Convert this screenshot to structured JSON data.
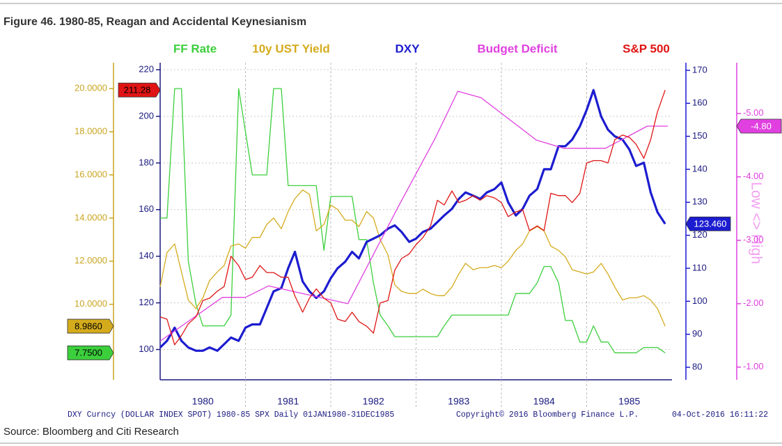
{
  "chart_data": {
    "type": "line",
    "title": "Figure 46. 1980-85, Reagan and Accidental Keynesianism",
    "source": "Source: Bloomberg and Citi Research",
    "notes": [
      "DXY Curncy (DOLLAR INDEX SPOT) 1980-85 SPX  Daily 01JAN1980-31DEC1985",
      "Copyright© 2016 Bloomberg Finance L.P.",
      "04-Oct-2016 16:11:22"
    ],
    "y4label": "Low <> High",
    "grid": true,
    "xlim": [
      1980,
      1986
    ],
    "xticks": [
      1981,
      1982,
      1983,
      1984,
      1985
    ],
    "x_labels": [
      {
        "value": 1980.5,
        "label": "1980"
      },
      {
        "value": 1981.5,
        "label": "1981"
      },
      {
        "value": 1982.5,
        "label": "1982"
      },
      {
        "value": 1983.5,
        "label": "1983"
      },
      {
        "value": 1984.5,
        "label": "1984"
      },
      {
        "value": 1985.5,
        "label": "1985"
      }
    ],
    "ylim": [
      6.5,
      21.2
    ],
    "yticks": [
      {
        "value": 10,
        "label": "10.0000"
      },
      {
        "value": 12,
        "label": "12.0000"
      },
      {
        "value": 14,
        "label": "14.0000"
      },
      {
        "value": 16,
        "label": "16.0000"
      },
      {
        "value": 18,
        "label": "18.0000"
      },
      {
        "value": 20,
        "label": "20.0000"
      }
    ],
    "y2lim": [
      87,
      223
    ],
    "y2ticks": [
      100,
      120,
      140,
      160,
      180,
      200,
      220
    ],
    "y3lim": [
      76.2,
      172.3
    ],
    "y3ticks": [
      80,
      90,
      100,
      110,
      120,
      130,
      140,
      150,
      160,
      170
    ],
    "y4lim": [
      -0.8,
      -5.8
    ],
    "y4ticks": [
      {
        "value": -1,
        "label": "-1.00"
      },
      {
        "value": -2,
        "label": "-2.00"
      },
      {
        "value": -3,
        "label": "-3.00"
      },
      {
        "value": -4,
        "label": "-4.00"
      },
      {
        "value": -5,
        "label": "-5.00"
      }
    ],
    "x": [
      1980.0,
      1980.08,
      1980.17,
      1980.25,
      1980.33,
      1980.42,
      1980.5,
      1980.58,
      1980.67,
      1980.75,
      1980.83,
      1980.92,
      1981.0,
      1981.08,
      1981.17,
      1981.25,
      1981.33,
      1981.42,
      1981.5,
      1981.58,
      1981.67,
      1981.75,
      1981.83,
      1981.92,
      1982.0,
      1982.08,
      1982.17,
      1982.25,
      1982.33,
      1982.42,
      1982.5,
      1982.58,
      1982.67,
      1982.75,
      1982.83,
      1982.92,
      1983.0,
      1983.08,
      1983.17,
      1983.25,
      1983.33,
      1983.42,
      1983.5,
      1983.58,
      1983.67,
      1983.75,
      1983.83,
      1983.92,
      1984.0,
      1984.08,
      1984.17,
      1984.25,
      1984.33,
      1984.42,
      1984.5,
      1984.58,
      1984.67,
      1984.75,
      1984.83,
      1984.92,
      1985.0,
      1985.08,
      1985.17,
      1985.25,
      1985.33,
      1985.42,
      1985.5,
      1985.58,
      1985.67,
      1985.75,
      1985.83,
      1985.92
    ],
    "series": [
      {
        "name": "FF Rate",
        "color": "#3ccf3c",
        "axis": "y",
        "values": [
          14,
          14,
          20,
          20,
          12,
          10,
          9,
          9,
          9,
          9,
          9.5,
          20,
          18,
          16,
          16,
          16,
          20,
          20,
          15.5,
          15.5,
          15.5,
          15.5,
          15.5,
          12.5,
          15,
          15,
          15,
          15,
          13,
          13,
          11,
          9.5,
          9,
          8.5,
          8.5,
          8.5,
          8.5,
          8.5,
          8.5,
          8.5,
          9,
          9.5,
          9.5,
          9.5,
          9.5,
          9.5,
          9.5,
          9.5,
          9.5,
          9.5,
          10.5,
          10.5,
          10.5,
          11,
          11.75,
          11.75,
          11,
          9.25,
          9.25,
          8.25,
          8.25,
          9,
          8.25,
          8.25,
          7.75,
          7.75,
          7.75,
          7.75,
          8,
          8,
          8,
          7.75
        ],
        "end_tag": {
          "value": 7.75,
          "label": "7.7500"
        }
      },
      {
        "name": "10y UST Yield",
        "color": "#d4ab1c",
        "axis": "y",
        "values": [
          10.8,
          12.4,
          12.8,
          11.5,
          10.2,
          9.8,
          10.3,
          11.1,
          11.5,
          11.8,
          12.7,
          12.8,
          12.6,
          13.1,
          13.1,
          13.7,
          14.0,
          13.5,
          14.3,
          14.9,
          15.3,
          15.1,
          13.4,
          13.7,
          14.6,
          14.4,
          13.9,
          13.9,
          13.6,
          14.3,
          14.0,
          13.0,
          12.3,
          10.9,
          10.6,
          10.5,
          10.5,
          10.7,
          10.5,
          10.4,
          10.4,
          10.8,
          11.4,
          11.9,
          11.6,
          11.7,
          11.7,
          11.8,
          11.7,
          12.0,
          12.5,
          12.8,
          13.4,
          13.6,
          13.4,
          12.7,
          12.5,
          12.2,
          11.6,
          11.5,
          11.4,
          11.5,
          11.9,
          11.4,
          10.8,
          10.2,
          10.3,
          10.3,
          10.4,
          10.2,
          9.8,
          8.986
        ],
        "end_tag": {
          "value": 8.986,
          "label": "8.9860"
        }
      },
      {
        "name": "DXY",
        "color": "#1c1cd0",
        "axis": "y3",
        "values": [
          86,
          88,
          92,
          88,
          86,
          85,
          85,
          86,
          85,
          87,
          89,
          88,
          92,
          93,
          93,
          98,
          103,
          104,
          110,
          115,
          106,
          103,
          101,
          103,
          107,
          110,
          112,
          115,
          113,
          118,
          119,
          120,
          122,
          123,
          121,
          118,
          119,
          121,
          122,
          124,
          126,
          128,
          131,
          133,
          132,
          131,
          133,
          134,
          136,
          130,
          126,
          128,
          132,
          134,
          140,
          140,
          147,
          147,
          149,
          153,
          158,
          164,
          156,
          152,
          150,
          149,
          146,
          141,
          142,
          133,
          127,
          123.46
        ],
        "end_tag": {
          "value": 123.46,
          "label": "123.460"
        }
      },
      {
        "name": "Budget Deficit",
        "color": "#e040e0",
        "axis": "y4",
        "x": [
          1980.0,
          1980.73,
          1981.0,
          1981.27,
          1982.2,
          1982.78,
          1983.22,
          1983.49,
          1983.76,
          1984.41,
          1984.73,
          1985.22,
          1985.71,
          1985.95
        ],
        "values": [
          -1.41,
          -2.1,
          -2.1,
          -2.28,
          -2.0,
          -3.5,
          -4.6,
          -5.35,
          -5.25,
          -4.58,
          -4.45,
          -4.45,
          -4.8,
          -4.8
        ],
        "end_tag": {
          "value": -4.8,
          "label": "-4.80"
        }
      },
      {
        "name": "S&P 500",
        "color": "#e01414",
        "axis": "y2",
        "values": [
          114,
          113,
          102,
          106,
          111,
          114,
          121,
          122,
          125,
          127,
          140,
          136,
          130,
          131,
          136,
          133,
          133,
          131,
          131,
          123,
          116,
          122,
          126,
          122,
          120,
          113,
          112,
          116,
          112,
          110,
          107,
          120,
          121,
          134,
          139,
          141,
          145,
          148,
          153,
          164,
          162,
          168,
          163,
          164,
          166,
          164,
          166,
          165,
          163,
          157,
          159,
          160,
          151,
          153,
          151,
          167,
          166,
          166,
          163,
          167,
          180,
          181,
          181,
          180,
          190,
          192,
          191,
          188,
          182,
          190,
          202,
          211.28
        ],
        "end_tag": 211.28
      }
    ]
  }
}
